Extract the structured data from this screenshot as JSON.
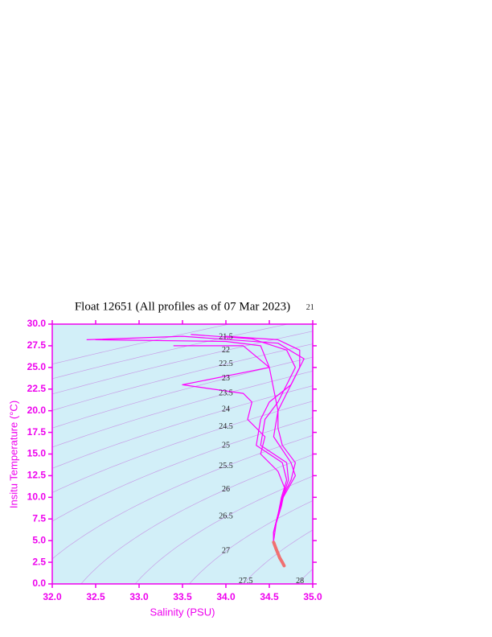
{
  "chart_data": {
    "type": "line",
    "title": "Float 12651  (All profiles as of 07 Mar 2023)",
    "x_label": "Salinity (PSU)",
    "y_label": "Insitu Temperature (°C)",
    "xlim": [
      32.0,
      35.0
    ],
    "ylim": [
      0.0,
      30.0
    ],
    "xticks": [
      {
        "value": 32.0,
        "label": "32.0"
      },
      32.5,
      {
        "value": 33.0,
        "label": "33.0"
      },
      33.5,
      {
        "value": 34.0,
        "label": "34.0"
      },
      34.5,
      {
        "value": 35.0,
        "label": "35.0"
      }
    ],
    "yticks": [
      {
        "value": 0,
        "label": "0.0"
      },
      2.5,
      {
        "value": 5,
        "label": "5.0"
      },
      7.5,
      {
        "value": 10,
        "label": "10.0"
      },
      12.5,
      {
        "value": 15,
        "label": "15.0"
      },
      17.5,
      {
        "value": 20,
        "label": "20.0"
      },
      22.5,
      {
        "value": 25,
        "label": "25.0"
      },
      27.5,
      {
        "value": 30,
        "label": "30.0"
      }
    ],
    "background": "#d2eff8",
    "axis_color": "#ee00ee",
    "contours": {
      "color": "#c8a0e8",
      "levels": [
        21,
        21.5,
        22,
        22.5,
        23,
        23.5,
        24,
        24.5,
        25,
        25.5,
        26,
        26.5,
        27,
        27.5,
        28
      ]
    },
    "series": [
      {
        "color": "#ff00ff",
        "x": [
          32.5,
          34.0,
          34.4,
          34.5,
          34.55,
          34.6,
          34.6,
          34.65,
          34.8,
          34.75,
          34.65,
          34.6,
          34.55,
          34.55
        ],
        "values": [
          28.2,
          28,
          27.5,
          25,
          22.5,
          20,
          18,
          16,
          14,
          12,
          10,
          8,
          6,
          5
        ]
      },
      {
        "color": "#ff00ff",
        "x": [
          33.6,
          34.3,
          34.7,
          34.8,
          34.7,
          34.6,
          34.45,
          34.4,
          34.7,
          34.72,
          34.65,
          34.6,
          34.55,
          34.55
        ],
        "values": [
          28.8,
          28.3,
          27,
          25,
          23,
          21,
          19,
          16,
          14,
          12,
          10,
          8,
          6,
          5
        ]
      },
      {
        "color": "#ff00ff",
        "x": [
          34.0,
          34.6,
          34.85,
          34.85,
          34.75,
          34.5,
          34.4,
          34.35,
          34.65,
          34.7,
          34.64,
          34.6,
          34.55,
          34.55
        ],
        "values": [
          28.6,
          28.2,
          27,
          25,
          23,
          21,
          19,
          16,
          14,
          12,
          10,
          8,
          6,
          5
        ]
      },
      {
        "color": "#ff00ff",
        "x": [
          33.4,
          34.2,
          34.5,
          33.5,
          34.2,
          34.3,
          34.25,
          34.45,
          34.4,
          34.6,
          34.68,
          34.64,
          34.58,
          34.55
        ],
        "values": [
          27.5,
          27.5,
          25,
          23,
          22,
          21,
          19,
          17,
          15,
          13,
          11,
          9,
          7,
          5
        ]
      },
      {
        "color": "#ff00ff",
        "x": [
          32.4,
          33.5,
          34.6,
          34.9,
          34.8,
          34.7,
          34.6,
          34.55,
          34.75,
          34.8,
          34.66,
          34.6,
          34.55,
          34.55
        ],
        "values": [
          28.2,
          28.6,
          27.8,
          26,
          24,
          22,
          20,
          17,
          14,
          12.5,
          10,
          8,
          6,
          5
        ]
      },
      {
        "color": "#f07070",
        "x": [
          34.55,
          34.58,
          34.62,
          34.65,
          34.67
        ],
        "values": [
          4.8,
          4,
          3,
          2.5,
          2.1
        ]
      }
    ]
  }
}
